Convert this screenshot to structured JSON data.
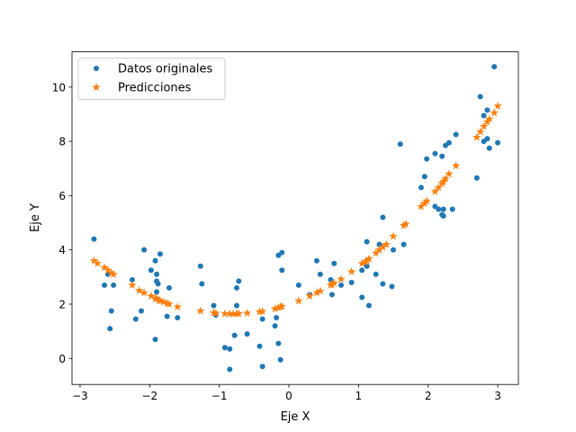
{
  "chart_data": {
    "type": "scatter",
    "xlabel": "Eje X",
    "ylabel": "Eje Y",
    "xlim": [
      -3.116,
      3.297
    ],
    "ylim": [
      -0.96,
      11.3
    ],
    "xticks": [
      -3,
      -2,
      -1,
      0,
      1,
      2,
      3
    ],
    "yticks": [
      0,
      2,
      4,
      6,
      8,
      10
    ],
    "grid": false,
    "legend_position": "top-left",
    "series": [
      {
        "name": "Datos originales",
        "marker": "circle",
        "color": "#1f77b4",
        "points": [
          [
            -2.8,
            4.4
          ],
          [
            -2.65,
            2.7
          ],
          [
            -2.6,
            3.1
          ],
          [
            -2.55,
            1.75
          ],
          [
            -2.52,
            2.7
          ],
          [
            -2.57,
            1.1
          ],
          [
            -2.25,
            2.9
          ],
          [
            -2.2,
            1.45
          ],
          [
            -2.12,
            1.75
          ],
          [
            -2.08,
            4.0
          ],
          [
            -1.98,
            3.25
          ],
          [
            -1.92,
            3.6
          ],
          [
            -1.9,
            3.1
          ],
          [
            -1.9,
            2.85
          ],
          [
            -1.88,
            2.75
          ],
          [
            -1.85,
            3.85
          ],
          [
            -1.92,
            0.7
          ],
          [
            -1.9,
            2.45
          ],
          [
            -1.75,
            1.55
          ],
          [
            -1.72,
            2.6
          ],
          [
            -1.6,
            1.5
          ],
          [
            -1.27,
            3.4
          ],
          [
            -1.25,
            2.75
          ],
          [
            -1.08,
            1.95
          ],
          [
            -1.05,
            1.6
          ],
          [
            -0.92,
            0.4
          ],
          [
            -0.85,
            0.35
          ],
          [
            -0.85,
            -0.4
          ],
          [
            -0.78,
            0.85
          ],
          [
            -0.75,
            1.95
          ],
          [
            -0.75,
            2.6
          ],
          [
            -0.72,
            2.85
          ],
          [
            -0.6,
            0.9
          ],
          [
            -0.42,
            0.45
          ],
          [
            -0.38,
            -0.3
          ],
          [
            -0.38,
            1.45
          ],
          [
            -0.2,
            1.2
          ],
          [
            -0.18,
            1.5
          ],
          [
            -0.15,
            0.55
          ],
          [
            -0.15,
            3.8
          ],
          [
            -0.12,
            -0.05
          ],
          [
            -0.1,
            3.25
          ],
          [
            -0.1,
            3.9
          ],
          [
            0.14,
            2.7
          ],
          [
            0.3,
            2.35
          ],
          [
            0.4,
            3.6
          ],
          [
            0.45,
            3.1
          ],
          [
            0.6,
            2.9
          ],
          [
            0.62,
            2.35
          ],
          [
            0.65,
            3.5
          ],
          [
            0.75,
            2.7
          ],
          [
            0.9,
            2.8
          ],
          [
            1.05,
            3.25
          ],
          [
            1.05,
            2.25
          ],
          [
            1.12,
            4.3
          ],
          [
            1.12,
            3.4
          ],
          [
            1.15,
            1.95
          ],
          [
            1.25,
            3.1
          ],
          [
            1.3,
            4.2
          ],
          [
            1.35,
            5.2
          ],
          [
            1.35,
            2.75
          ],
          [
            1.48,
            2.65
          ],
          [
            1.5,
            4.0
          ],
          [
            1.6,
            7.9
          ],
          [
            1.65,
            4.2
          ],
          [
            1.9,
            6.3
          ],
          [
            1.95,
            6.7
          ],
          [
            1.98,
            7.35
          ],
          [
            2.1,
            7.55
          ],
          [
            2.1,
            5.6
          ],
          [
            2.15,
            5.5
          ],
          [
            2.2,
            7.45
          ],
          [
            2.2,
            5.3
          ],
          [
            2.22,
            5.5
          ],
          [
            2.22,
            5.25
          ],
          [
            2.25,
            7.85
          ],
          [
            2.3,
            7.95
          ],
          [
            2.35,
            5.5
          ],
          [
            2.4,
            8.25
          ],
          [
            2.7,
            6.65
          ],
          [
            2.75,
            9.65
          ],
          [
            2.8,
            8.95
          ],
          [
            2.8,
            8.0
          ],
          [
            2.85,
            9.15
          ],
          [
            2.85,
            8.1
          ],
          [
            2.88,
            7.75
          ],
          [
            2.95,
            10.75
          ],
          [
            3.0,
            7.95
          ]
        ]
      },
      {
        "name": "Predicciones",
        "marker": "star",
        "color": "#ff7f0e",
        "points": [
          [
            -2.8,
            3.6
          ],
          [
            -2.75,
            3.5
          ],
          [
            -2.65,
            3.35
          ],
          [
            -2.6,
            3.25
          ],
          [
            -2.55,
            3.15
          ],
          [
            -2.52,
            3.1
          ],
          [
            -2.25,
            2.7
          ],
          [
            -2.15,
            2.5
          ],
          [
            -2.08,
            2.42
          ],
          [
            -1.98,
            2.3
          ],
          [
            -1.92,
            2.22
          ],
          [
            -1.9,
            2.2
          ],
          [
            -1.87,
            2.15
          ],
          [
            -1.85,
            2.12
          ],
          [
            -1.8,
            2.08
          ],
          [
            -1.75,
            2.03
          ],
          [
            -1.72,
            2.0
          ],
          [
            -1.6,
            1.9
          ],
          [
            -1.27,
            1.75
          ],
          [
            -1.08,
            1.68
          ],
          [
            -1.05,
            1.67
          ],
          [
            -0.92,
            1.65
          ],
          [
            -0.85,
            1.65
          ],
          [
            -0.8,
            1.64
          ],
          [
            -0.75,
            1.65
          ],
          [
            -0.72,
            1.65
          ],
          [
            -0.6,
            1.67
          ],
          [
            -0.42,
            1.72
          ],
          [
            -0.38,
            1.73
          ],
          [
            -0.2,
            1.83
          ],
          [
            -0.15,
            1.87
          ],
          [
            -0.12,
            1.9
          ],
          [
            -0.1,
            1.92
          ],
          [
            0.14,
            2.12
          ],
          [
            0.3,
            2.3
          ],
          [
            0.4,
            2.42
          ],
          [
            0.45,
            2.48
          ],
          [
            0.6,
            2.7
          ],
          [
            0.62,
            2.73
          ],
          [
            0.65,
            2.78
          ],
          [
            0.75,
            2.92
          ],
          [
            0.9,
            3.2
          ],
          [
            1.05,
            3.5
          ],
          [
            1.1,
            3.55
          ],
          [
            1.12,
            3.6
          ],
          [
            1.15,
            3.67
          ],
          [
            1.25,
            3.88
          ],
          [
            1.3,
            4.0
          ],
          [
            1.35,
            4.1
          ],
          [
            1.4,
            4.2
          ],
          [
            1.5,
            4.5
          ],
          [
            1.65,
            4.9
          ],
          [
            1.68,
            4.95
          ],
          [
            1.9,
            5.6
          ],
          [
            1.95,
            5.72
          ],
          [
            1.98,
            5.8
          ],
          [
            2.1,
            6.15
          ],
          [
            2.15,
            6.3
          ],
          [
            2.2,
            6.45
          ],
          [
            2.22,
            6.52
          ],
          [
            2.25,
            6.62
          ],
          [
            2.3,
            6.8
          ],
          [
            2.4,
            7.1
          ],
          [
            2.7,
            8.15
          ],
          [
            2.75,
            8.35
          ],
          [
            2.8,
            8.55
          ],
          [
            2.85,
            8.72
          ],
          [
            2.88,
            8.82
          ],
          [
            2.95,
            9.05
          ],
          [
            3.0,
            9.3
          ]
        ]
      }
    ]
  }
}
